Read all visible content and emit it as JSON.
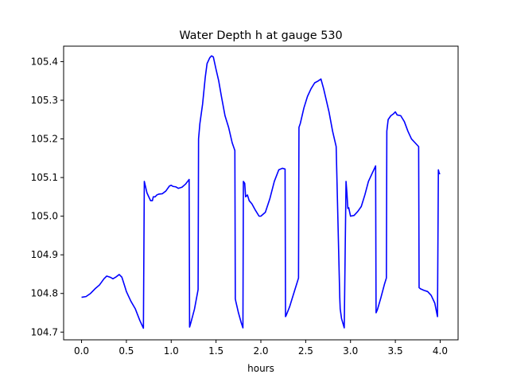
{
  "chart_data": {
    "type": "line",
    "title": "Water Depth h at gauge 530",
    "xlabel": "hours",
    "ylabel": "",
    "xlim": [
      -0.2,
      4.2
    ],
    "ylim": [
      104.68,
      105.44
    ],
    "grid": false,
    "xticks": [
      0.0,
      0.5,
      1.0,
      1.5,
      2.0,
      2.5,
      3.0,
      3.5,
      4.0
    ],
    "xtick_labels": [
      "0.0",
      "0.5",
      "1.0",
      "1.5",
      "2.0",
      "2.5",
      "3.0",
      "3.5",
      "4.0"
    ],
    "yticks": [
      104.7,
      104.8,
      104.9,
      105.0,
      105.1,
      105.2,
      105.3,
      105.4
    ],
    "ytick_labels": [
      "104.7",
      "104.8",
      "104.9",
      "105.0",
      "105.1",
      "105.2",
      "105.3",
      "105.4"
    ],
    "series": [
      {
        "color": "#0000ff",
        "x": [
          0.0,
          0.05,
          0.1,
          0.15,
          0.2,
          0.25,
          0.28,
          0.32,
          0.35,
          0.38,
          0.42,
          0.45,
          0.48,
          0.5,
          0.52,
          0.55,
          0.6,
          0.65,
          0.69,
          0.7,
          0.71,
          0.73,
          0.75,
          0.77,
          0.79,
          0.8,
          0.82,
          0.84,
          0.86,
          0.9,
          0.94,
          0.98,
          1.0,
          1.02,
          1.05,
          1.08,
          1.12,
          1.16,
          1.2,
          1.205,
          1.22,
          1.26,
          1.3,
          1.305,
          1.32,
          1.35,
          1.38,
          1.4,
          1.43,
          1.45,
          1.47,
          1.5,
          1.53,
          1.56,
          1.6,
          1.64,
          1.68,
          1.71,
          1.715,
          1.72,
          1.75,
          1.78,
          1.8,
          1.805,
          1.82,
          1.83,
          1.85,
          1.87,
          1.9,
          1.94,
          1.98,
          2.0,
          2.05,
          2.1,
          2.15,
          2.2,
          2.24,
          2.27,
          2.275,
          2.28,
          2.32,
          2.36,
          2.4,
          2.42,
          2.425,
          2.44,
          2.48,
          2.52,
          2.56,
          2.6,
          2.64,
          2.67,
          2.7,
          2.73,
          2.76,
          2.8,
          2.84,
          2.88,
          2.885,
          2.9,
          2.93,
          2.95,
          2.96,
          2.97,
          2.98,
          3.0,
          3.04,
          3.08,
          3.12,
          3.16,
          3.2,
          3.24,
          3.28,
          3.285,
          3.3,
          3.34,
          3.38,
          3.4,
          3.405,
          3.42,
          3.45,
          3.48,
          3.5,
          3.52,
          3.56,
          3.6,
          3.64,
          3.68,
          3.72,
          3.76,
          3.765,
          3.78,
          3.82,
          3.86,
          3.9,
          3.94,
          3.97,
          3.98,
          3.99,
          4.0
        ],
        "y": [
          104.79,
          104.792,
          104.8,
          104.812,
          104.822,
          104.838,
          104.845,
          104.842,
          104.838,
          104.842,
          104.849,
          104.842,
          104.82,
          104.805,
          104.795,
          104.78,
          104.76,
          104.73,
          104.71,
          105.09,
          105.08,
          105.06,
          105.05,
          105.04,
          105.04,
          105.05,
          105.05,
          105.055,
          105.057,
          105.058,
          105.065,
          105.078,
          105.08,
          105.077,
          105.076,
          105.072,
          105.075,
          105.083,
          105.095,
          104.713,
          104.725,
          104.76,
          104.81,
          105.2,
          105.24,
          105.29,
          105.36,
          105.395,
          105.41,
          105.415,
          105.412,
          105.38,
          105.35,
          105.31,
          105.26,
          105.23,
          105.19,
          105.17,
          104.786,
          104.78,
          104.75,
          104.725,
          104.711,
          105.09,
          105.085,
          105.05,
          105.055,
          105.04,
          105.032,
          105.015,
          105.0,
          105.0,
          105.01,
          105.045,
          105.09,
          105.12,
          105.124,
          105.122,
          104.74,
          104.742,
          104.765,
          104.795,
          104.825,
          104.84,
          105.23,
          105.24,
          105.28,
          105.31,
          105.33,
          105.345,
          105.35,
          105.355,
          105.33,
          105.3,
          105.27,
          105.22,
          105.18,
          104.79,
          104.76,
          104.735,
          104.711,
          105.09,
          105.06,
          105.02,
          105.022,
          105.0,
          105.002,
          105.012,
          105.025,
          105.055,
          105.09,
          105.11,
          105.13,
          104.75,
          104.758,
          104.79,
          104.825,
          104.84,
          105.22,
          105.25,
          105.26,
          105.265,
          105.27,
          105.262,
          105.26,
          105.245,
          105.22,
          105.2,
          105.19,
          105.18,
          104.815,
          104.812,
          104.808,
          104.805,
          104.795,
          104.775,
          104.74,
          105.12,
          105.11,
          105.11
        ]
      }
    ]
  }
}
